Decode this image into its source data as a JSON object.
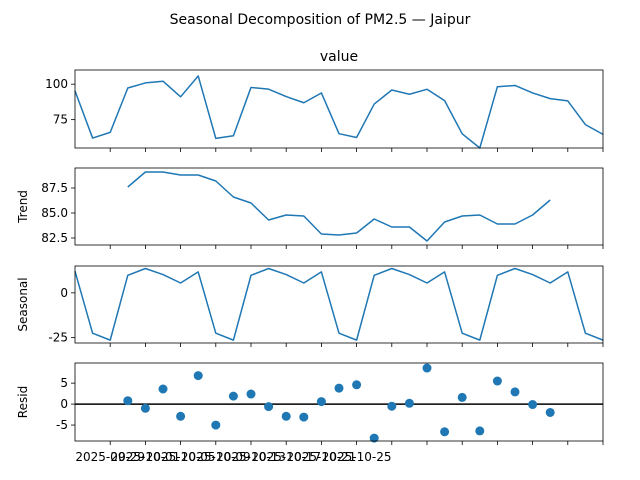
{
  "chart_data": [
    {
      "type": "line",
      "title": "value",
      "ylabel": "",
      "ylim": [
        55,
        110
      ],
      "yticks": [
        75,
        100
      ],
      "xlim": [
        "2025-09-27",
        "2025-10-27"
      ],
      "x": [
        "2025-09-27",
        "2025-09-28",
        "2025-09-29",
        "2025-09-30",
        "2025-10-01",
        "2025-10-02",
        "2025-10-03",
        "2025-10-04",
        "2025-10-05",
        "2025-10-06",
        "2025-10-07",
        "2025-10-08",
        "2025-10-09",
        "2025-10-10",
        "2025-10-11",
        "2025-10-12",
        "2025-10-13",
        "2025-10-14",
        "2025-10-15",
        "2025-10-16",
        "2025-10-17",
        "2025-10-18",
        "2025-10-19",
        "2025-10-20",
        "2025-10-21",
        "2025-10-22",
        "2025-10-23",
        "2025-10-24",
        "2025-10-25",
        "2025-10-26",
        "2025-10-27"
      ],
      "series": [
        {
          "values": [
            95.3,
            62,
            66,
            97.3,
            100.9,
            102.1,
            91.1,
            105.8,
            61.8,
            63.6,
            97.7,
            96.5,
            91.3,
            86.9,
            93.8,
            65.1,
            62.4,
            86,
            95.9,
            92.9,
            96.4,
            88.4,
            65,
            55,
            98.2,
            99.1,
            93.8,
            89.8,
            88.2,
            71.5,
            64.6
          ]
        }
      ]
    },
    {
      "type": "line",
      "title": "",
      "ylabel": "Trend",
      "ylim": [
        81.8,
        89.5
      ],
      "yticks": [
        82.5,
        85.0,
        87.5
      ],
      "tick_labels": [
        "82.5",
        "85.0",
        "87.5"
      ],
      "x": [
        "2025-09-30",
        "2025-10-01",
        "2025-10-02",
        "2025-10-03",
        "2025-10-04",
        "2025-10-05",
        "2025-10-06",
        "2025-10-07",
        "2025-10-08",
        "2025-10-09",
        "2025-10-10",
        "2025-10-11",
        "2025-10-12",
        "2025-10-13",
        "2025-10-14",
        "2025-10-15",
        "2025-10-16",
        "2025-10-17",
        "2025-10-18",
        "2025-10-19",
        "2025-10-20",
        "2025-10-21",
        "2025-10-22",
        "2025-10-23",
        "2025-10-24"
      ],
      "series": [
        {
          "values": [
            87.6,
            89.1,
            89.1,
            88.8,
            88.8,
            88.2,
            86.6,
            86,
            84.3,
            84.8,
            84.7,
            82.9,
            82.8,
            83,
            84.4,
            83.6,
            83.6,
            82.2,
            84.1,
            84.7,
            84.8,
            83.9,
            83.9,
            84.8,
            86.3
          ]
        }
      ]
    },
    {
      "type": "line",
      "title": "",
      "ylabel": "Seasonal",
      "ylim": [
        -28,
        15
      ],
      "yticks": [
        -25,
        0
      ],
      "x": [
        "2025-09-27",
        "2025-09-28",
        "2025-09-29",
        "2025-09-30",
        "2025-10-01",
        "2025-10-02",
        "2025-10-03",
        "2025-10-04",
        "2025-10-05",
        "2025-10-06",
        "2025-10-07",
        "2025-10-08",
        "2025-10-09",
        "2025-10-10",
        "2025-10-11",
        "2025-10-12",
        "2025-10-13",
        "2025-10-14",
        "2025-10-15",
        "2025-10-16",
        "2025-10-17",
        "2025-10-18",
        "2025-10-19",
        "2025-10-20",
        "2025-10-21",
        "2025-10-22",
        "2025-10-23",
        "2025-10-24",
        "2025-10-25",
        "2025-10-26",
        "2025-10-27"
      ],
      "series": [
        {
          "values": [
            12.1,
            -22.5,
            -26.4,
            9.8,
            13.6,
            10.2,
            5.5,
            11.7,
            -22.5,
            -26.4,
            9.8,
            13.6,
            10.2,
            5.5,
            11.7,
            -22.5,
            -26.4,
            9.8,
            13.6,
            10.2,
            5.5,
            11.7,
            -22.5,
            -26.4,
            9.8,
            13.6,
            10.2,
            5.5,
            11.7,
            -22.5,
            -26.4
          ]
        }
      ]
    },
    {
      "type": "scatter",
      "title": "",
      "ylabel": "Resid",
      "ylim": [
        -8.8,
        9.8
      ],
      "yticks": [
        -5,
        0,
        5
      ],
      "zero_line": 0,
      "xlim": [
        "2025-09-27",
        "2025-10-27"
      ],
      "xtick_labels": [
        "2025-09-29",
        "2025-10-01",
        "2025-10-05",
        "2025-10-09",
        "2025-10-13",
        "2025-10-17",
        "2025-10-21",
        "2025-10-25"
      ],
      "x": [
        "2025-09-30",
        "2025-10-01",
        "2025-10-02",
        "2025-10-03",
        "2025-10-04",
        "2025-10-05",
        "2025-10-06",
        "2025-10-07",
        "2025-10-08",
        "2025-10-09",
        "2025-10-10",
        "2025-10-11",
        "2025-10-12",
        "2025-10-13",
        "2025-10-14",
        "2025-10-15",
        "2025-10-16",
        "2025-10-17",
        "2025-10-18",
        "2025-10-19",
        "2025-10-20",
        "2025-10-21",
        "2025-10-22",
        "2025-10-23",
        "2025-10-24"
      ],
      "series": [
        {
          "values": [
            0.8,
            -1,
            3.6,
            -2.9,
            6.8,
            -5,
            1.9,
            2.4,
            -0.6,
            -2.9,
            -3.1,
            0.6,
            3.8,
            4.6,
            -8.1,
            -0.5,
            0.2,
            8.6,
            -6.6,
            1.6,
            -6.4,
            5.5,
            2.9,
            -0.1,
            -2
          ]
        }
      ]
    }
  ],
  "figure": {
    "suptitle": "Seasonal Decomposition of PM2.5 — Jaipur"
  },
  "colors": {
    "line": "#1f77b4",
    "marker": "#1f77b4",
    "axis": "#000000",
    "zero_line": "#000000"
  }
}
